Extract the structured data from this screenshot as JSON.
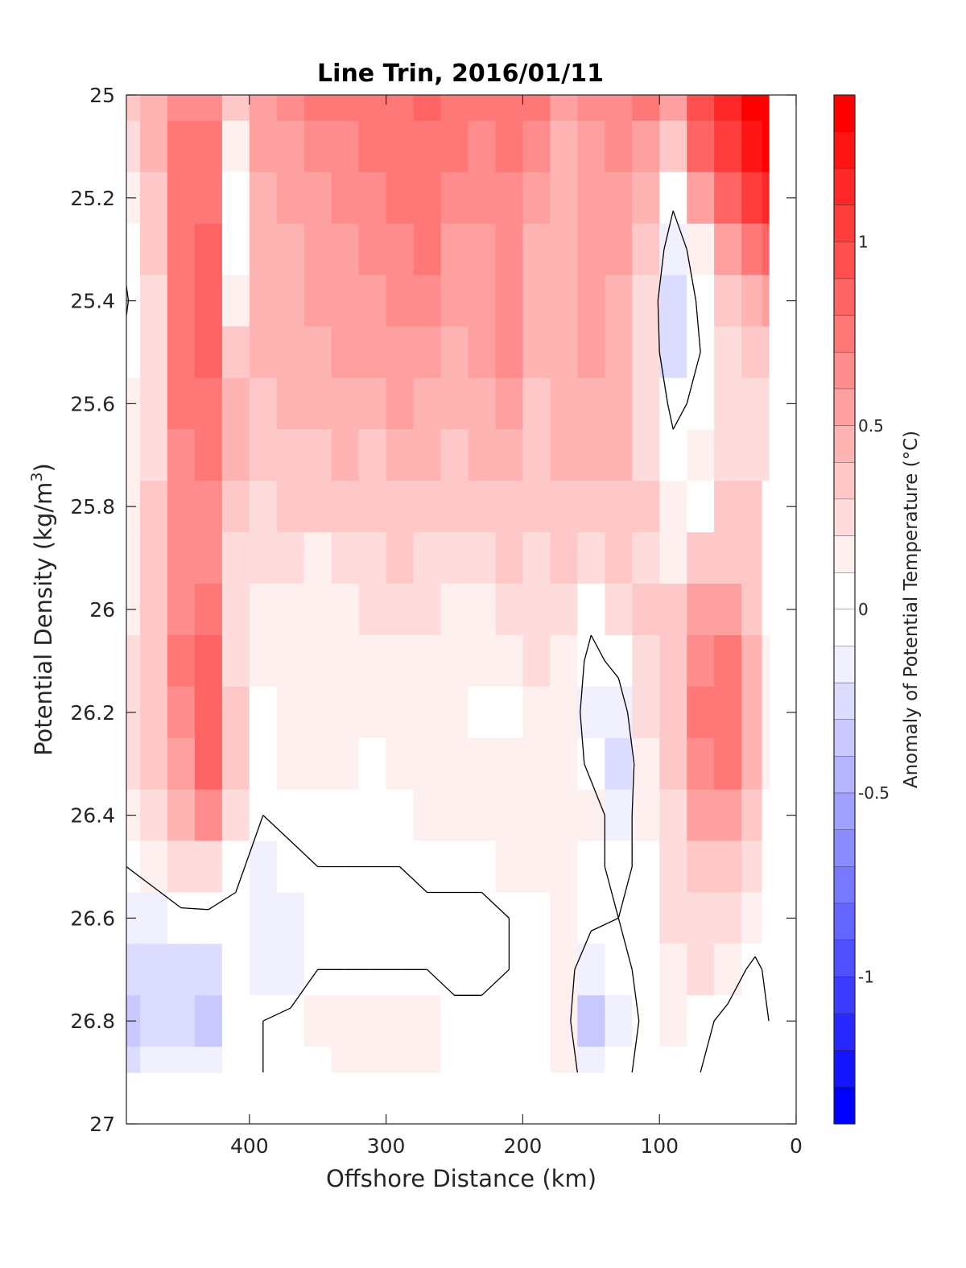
{
  "chart_data": {
    "type": "heatmap",
    "title": "Line Trin, 2016/01/11",
    "xlabel": "Offshore Distance (km)",
    "ylabel_main": "Potential Density (kg/m",
    "ylabel_sup": "3",
    "ylabel_close": ")",
    "colorbar_label": "Anomaly of Potential Temperature (°C)",
    "xlim": [
      490,
      0
    ],
    "ylim": [
      25,
      27
    ],
    "x_reversed": true,
    "y_reversed": true,
    "xticks": [
      400,
      300,
      200,
      100,
      0
    ],
    "xtick_labels": [
      "400",
      "300",
      "200",
      "100",
      "0"
    ],
    "yticks": [
      25,
      25.2,
      25.4,
      25.6,
      25.8,
      26,
      26.2,
      26.4,
      26.6,
      26.8,
      27
    ],
    "ytick_labels": [
      "25",
      "25.2",
      "25.4",
      "25.6",
      "25.8",
      "26",
      "26.2",
      "26.4",
      "26.6",
      "26.8",
      "27"
    ],
    "colorbar_range": [
      -1.4,
      1.4
    ],
    "colorbar_step": 0.1,
    "colorbar_ticks": [
      1,
      0.5,
      0,
      -0.5,
      -1
    ],
    "colorbar_tick_labels": [
      "1",
      "0.5",
      "0",
      "-0.5",
      "-1"
    ],
    "data_extent": {
      "x": [
        490,
        20
      ],
      "y": [
        25,
        26.9
      ]
    },
    "x": [
      490,
      470,
      450,
      430,
      410,
      390,
      370,
      350,
      330,
      310,
      290,
      270,
      250,
      230,
      210,
      190,
      170,
      150,
      130,
      110,
      90,
      70,
      50,
      30,
      20
    ],
    "y": [
      25.0,
      25.1,
      25.2,
      25.3,
      25.4,
      25.5,
      25.6,
      25.7,
      25.8,
      25.9,
      26.0,
      26.1,
      26.2,
      26.3,
      26.4,
      26.5,
      26.6,
      26.7,
      26.8,
      26.9
    ],
    "z": [
      [
        0.3,
        0.4,
        0.6,
        0.6,
        0.3,
        0.5,
        0.6,
        0.7,
        0.7,
        0.7,
        0.75,
        0.8,
        0.75,
        0.7,
        0.75,
        0.7,
        0.5,
        0.6,
        0.65,
        0.7,
        0.5,
        0.95,
        1.1,
        1.3,
        1.35
      ],
      [
        0.2,
        0.4,
        0.7,
        0.7,
        0.15,
        0.5,
        0.55,
        0.6,
        0.65,
        0.7,
        0.75,
        0.75,
        0.7,
        0.65,
        0.7,
        0.6,
        0.45,
        0.55,
        0.6,
        0.55,
        0.35,
        0.8,
        1.0,
        1.2,
        1.3
      ],
      [
        0.1,
        0.35,
        0.7,
        0.75,
        0.05,
        0.45,
        0.5,
        0.55,
        0.6,
        0.65,
        0.7,
        0.7,
        0.6,
        0.6,
        0.65,
        0.5,
        0.4,
        0.5,
        0.55,
        0.4,
        0.05,
        0.5,
        0.8,
        1.0,
        1.1
      ],
      [
        0.05,
        0.3,
        0.7,
        0.8,
        0.05,
        0.4,
        0.45,
        0.5,
        0.55,
        0.6,
        0.65,
        0.7,
        0.55,
        0.55,
        0.6,
        0.45,
        0.4,
        0.55,
        0.5,
        0.3,
        -0.15,
        0.15,
        0.5,
        0.7,
        0.85
      ],
      [
        -0.02,
        0.25,
        0.7,
        0.8,
        0.15,
        0.4,
        0.45,
        0.5,
        0.5,
        0.55,
        0.6,
        0.6,
        0.5,
        0.55,
        0.6,
        0.4,
        0.4,
        0.5,
        0.45,
        0.2,
        -0.25,
        0.05,
        0.3,
        0.45,
        0.55
      ],
      [
        0.05,
        0.25,
        0.75,
        0.85,
        0.35,
        0.4,
        0.4,
        0.45,
        0.5,
        0.5,
        0.55,
        0.5,
        0.45,
        0.5,
        0.6,
        0.4,
        0.45,
        0.5,
        0.45,
        0.2,
        -0.2,
        0.0,
        0.2,
        0.3,
        0.35
      ],
      [
        0.1,
        0.25,
        0.7,
        0.75,
        0.45,
        0.35,
        0.4,
        0.4,
        0.45,
        0.45,
        0.5,
        0.45,
        0.4,
        0.45,
        0.55,
        0.35,
        0.45,
        0.45,
        0.45,
        0.2,
        -0.05,
        0.05,
        0.2,
        0.25,
        0.25
      ],
      [
        0.1,
        0.25,
        0.65,
        0.7,
        0.45,
        0.3,
        0.35,
        0.35,
        0.4,
        0.35,
        0.45,
        0.4,
        0.35,
        0.4,
        0.45,
        0.35,
        0.4,
        0.4,
        0.45,
        0.25,
        0.05,
        0.1,
        0.25,
        0.25,
        0.2
      ],
      [
        0.1,
        0.3,
        0.6,
        0.65,
        0.35,
        0.25,
        0.3,
        0.3,
        0.3,
        0.3,
        0.35,
        0.35,
        0.3,
        0.3,
        0.35,
        0.3,
        0.35,
        0.35,
        0.35,
        0.3,
        0.1,
        0.05,
        0.3,
        0.3,
        0.05
      ],
      [
        0.1,
        0.3,
        0.6,
        0.65,
        0.25,
        0.2,
        0.25,
        0.15,
        0.25,
        0.2,
        0.3,
        0.25,
        0.2,
        0.2,
        0.3,
        0.25,
        0.3,
        0.25,
        0.3,
        0.25,
        0.15,
        0.3,
        0.35,
        0.3,
        0.05
      ],
      [
        0.1,
        0.3,
        0.65,
        0.7,
        0.2,
        0.15,
        0.15,
        0.1,
        0.15,
        0.2,
        0.25,
        0.2,
        0.15,
        0.15,
        0.2,
        0.2,
        0.2,
        0.05,
        0.2,
        0.3,
        0.3,
        0.5,
        0.55,
        0.35,
        0.05
      ],
      [
        0.2,
        0.3,
        0.7,
        0.8,
        0.25,
        0.15,
        0.1,
        0.15,
        0.15,
        0.15,
        0.15,
        0.1,
        0.1,
        0.1,
        0.15,
        0.2,
        0.15,
        -0.05,
        0.05,
        0.25,
        0.35,
        0.65,
        0.7,
        0.45,
        0.1
      ],
      [
        0.25,
        0.3,
        0.65,
        0.85,
        0.35,
        0.05,
        0.1,
        0.15,
        0.1,
        0.1,
        0.1,
        0.1,
        0.1,
        0.05,
        0.05,
        0.15,
        0.15,
        -0.1,
        -0.1,
        0.2,
        0.3,
        0.7,
        0.75,
        0.45,
        0.1
      ],
      [
        0.25,
        0.3,
        0.55,
        0.85,
        0.35,
        0.05,
        0.1,
        0.1,
        0.1,
        0.05,
        0.1,
        0.1,
        0.1,
        0.1,
        0.1,
        0.15,
        0.15,
        -0.05,
        -0.2,
        0.15,
        0.3,
        0.65,
        0.7,
        0.4,
        0.1
      ],
      [
        0.15,
        0.2,
        0.45,
        0.65,
        0.2,
        0.0,
        0.05,
        0.05,
        0.05,
        0.05,
        0.05,
        0.1,
        0.1,
        0.1,
        0.1,
        0.15,
        0.15,
        0.1,
        -0.1,
        0.1,
        0.25,
        0.5,
        0.5,
        0.3,
        0.05
      ],
      [
        0.0,
        0.1,
        0.2,
        0.25,
        0.05,
        -0.1,
        -0.05,
        0.0,
        0.0,
        0.0,
        0.0,
        0.05,
        0.05,
        0.05,
        0.1,
        0.1,
        0.15,
        0.05,
        -0.05,
        0.05,
        0.25,
        0.3,
        0.3,
        0.2,
        0.05
      ],
      [
        -0.1,
        -0.15,
        -0.05,
        -0.05,
        -0.05,
        -0.1,
        -0.1,
        0.0,
        0.0,
        0.0,
        0.0,
        -0.05,
        -0.05,
        -0.05,
        0.0,
        0.05,
        0.1,
        0.05,
        0.0,
        0.05,
        0.2,
        0.25,
        0.25,
        0.15,
        0.05
      ],
      [
        -0.25,
        -0.25,
        -0.2,
        -0.25,
        -0.05,
        -0.15,
        -0.15,
        0.0,
        0.0,
        0.0,
        0.0,
        0.0,
        -0.05,
        -0.05,
        0.0,
        0.05,
        0.1,
        -0.15,
        -0.05,
        0.05,
        0.15,
        0.2,
        0.1,
        -0.05,
        0.05
      ],
      [
        -0.3,
        -0.25,
        -0.25,
        -0.3,
        -0.05,
        0.0,
        0.05,
        0.1,
        0.1,
        0.1,
        0.1,
        0.1,
        0.05,
        0.05,
        0.05,
        0.05,
        0.1,
        -0.3,
        -0.15,
        0.05,
        0.1,
        0.05,
        -0.05,
        0.0,
        0.0
      ],
      [
        -0.2,
        -0.15,
        -0.15,
        -0.15,
        -0.05,
        0.0,
        0.05,
        0.05,
        0.1,
        0.1,
        0.1,
        0.1,
        0.05,
        0.05,
        0.05,
        0.05,
        0.1,
        -0.1,
        -0.05,
        0.05,
        0.05,
        0.0,
        0.0,
        0.0,
        0.0
      ]
    ]
  }
}
